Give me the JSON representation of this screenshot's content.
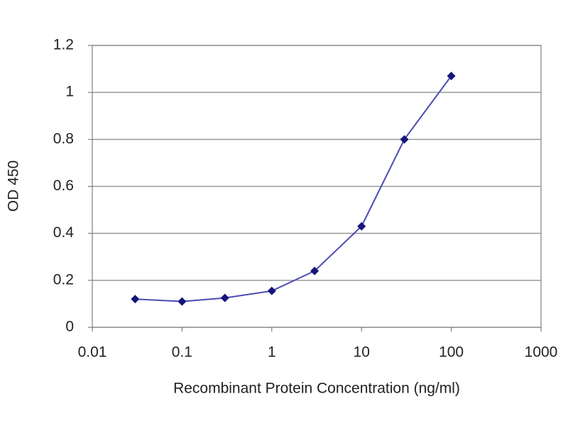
{
  "chart_data": {
    "type": "line",
    "xlabel": "Recombinant Protein Concentration (ng/ml)",
    "ylabel": "OD 450",
    "x": [
      0.03,
      0.1,
      0.3,
      1,
      3,
      10,
      30,
      100
    ],
    "values": [
      0.12,
      0.11,
      0.125,
      0.155,
      0.24,
      0.43,
      0.8,
      1.07
    ],
    "color": "#4b4bb4",
    "marker_color": "#15157a",
    "xscale": "log",
    "xlim": [
      0.01,
      1000
    ],
    "xticks": [
      0.01,
      0.1,
      1,
      10,
      100,
      1000
    ],
    "ylim": [
      0,
      1.2
    ],
    "yticks": [
      0,
      0.2,
      0.4,
      0.6,
      0.8,
      1,
      1.2
    ],
    "grid": true
  }
}
